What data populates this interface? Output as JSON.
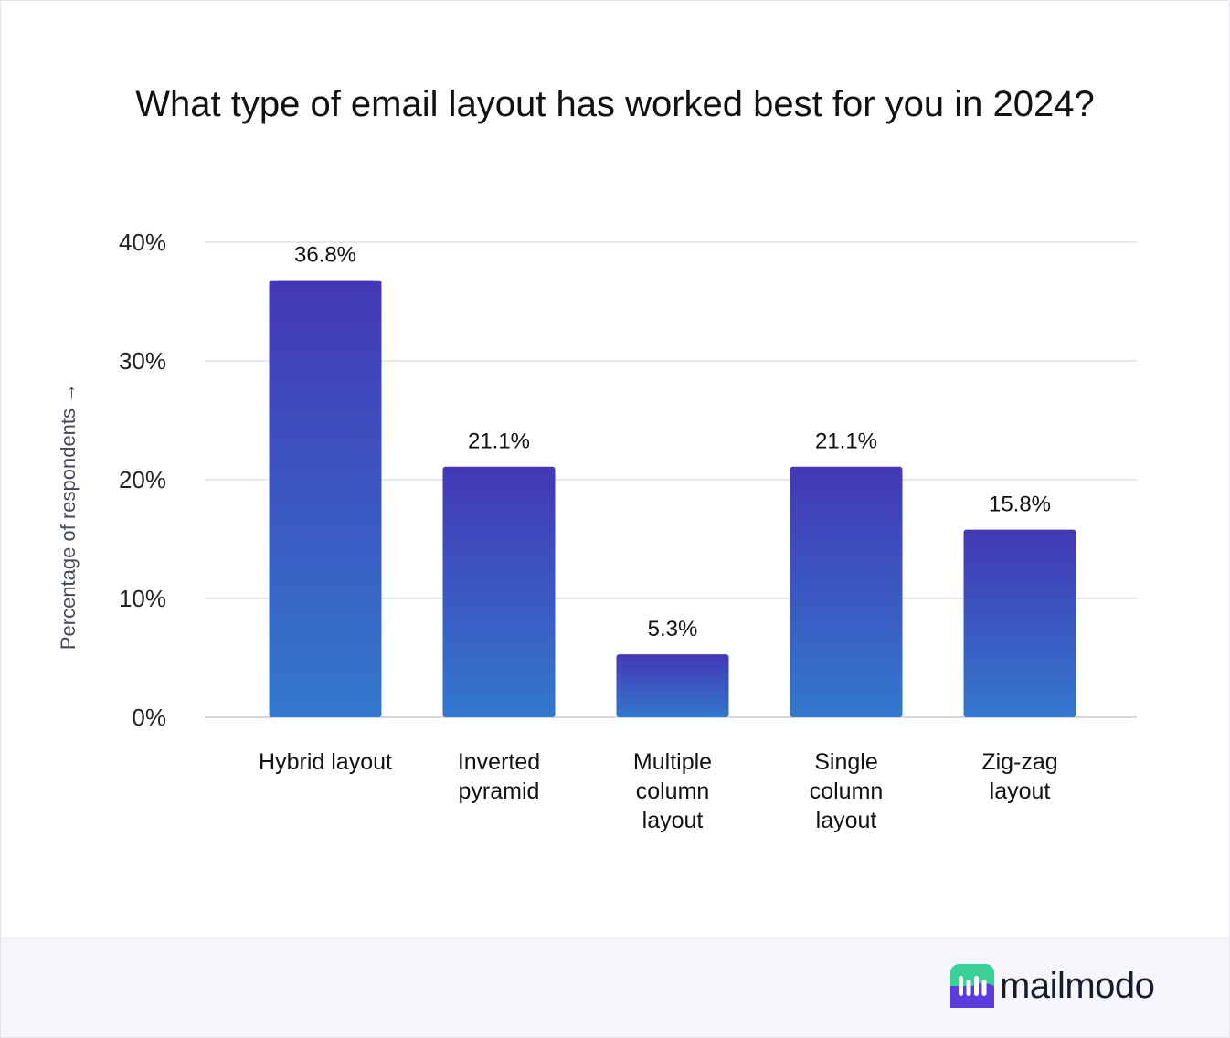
{
  "chart_data": {
    "type": "bar",
    "title": "What type of email layout has worked best for you in 2024?",
    "ylabel": "Percentage of respondents →",
    "xlabel": "",
    "categories": [
      [
        "Hybrid layout"
      ],
      [
        "Inverted",
        "pyramid"
      ],
      [
        "Multiple",
        "column",
        "layout"
      ],
      [
        "Single",
        "column",
        "layout"
      ],
      [
        "Zig-zag",
        "layout"
      ]
    ],
    "values": [
      36.8,
      21.1,
      5.3,
      21.1,
      15.8
    ],
    "data_labels": [
      "36.8%",
      "21.1%",
      "5.3%",
      "21.1%",
      "15.8%"
    ],
    "ylim": [
      0,
      40
    ],
    "yticks": [
      0,
      10,
      20,
      30,
      40
    ],
    "ytick_labels": [
      "0%",
      "10%",
      "20%",
      "30%",
      "40%"
    ],
    "grid": true,
    "legend": "none",
    "colors": {
      "bar_top": "#4338b5",
      "bar_bottom": "#3378cd",
      "grid": "#d9dbe0"
    }
  },
  "brand": {
    "name": "mailmodo",
    "colors": {
      "mark_green": "#3ad196",
      "mark_purple": "#5b3cdc"
    }
  }
}
